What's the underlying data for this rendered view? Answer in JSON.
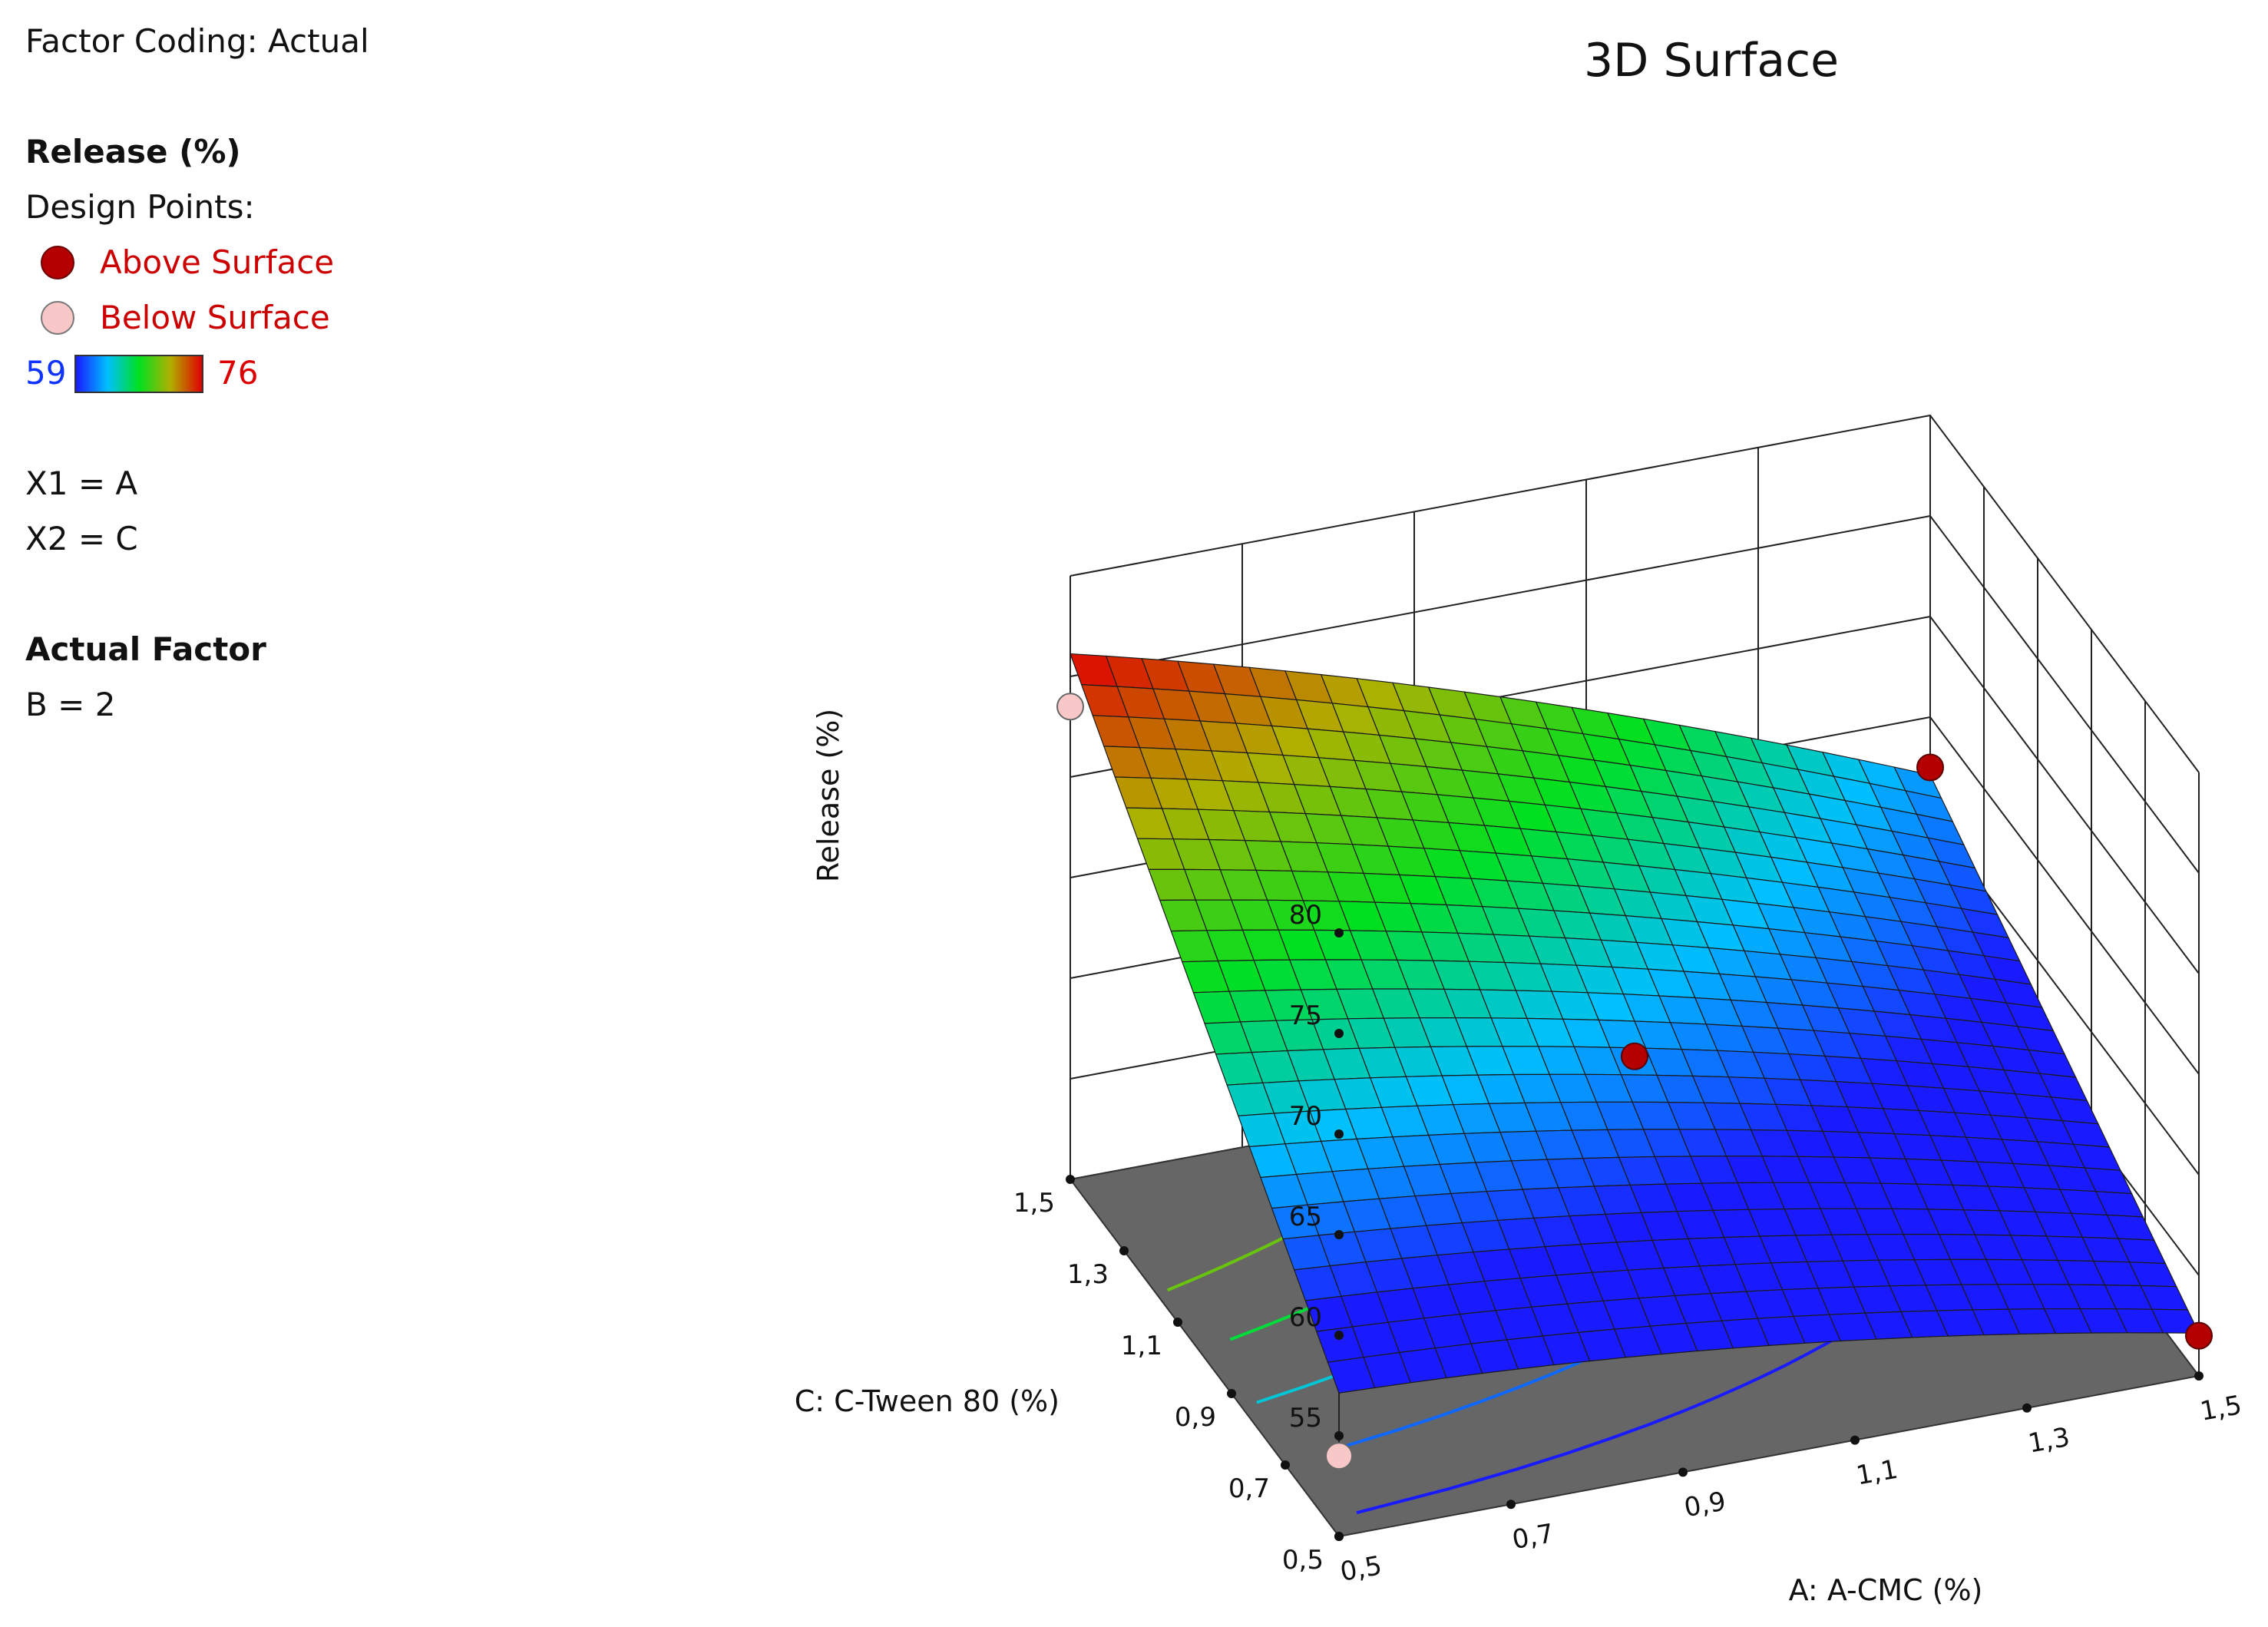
{
  "legend": {
    "factor_coding": "Factor Coding: Actual",
    "response": "Release (%)",
    "design_points_label": "Design Points:",
    "above_label": "Above Surface",
    "below_label": "Below Surface",
    "color_min": "59",
    "color_max": "76",
    "x1": "X1 = A",
    "x2": "X2 = C",
    "actual_factor_heading": "Actual Factor",
    "actual_factor_value": "B = 2"
  },
  "colors": {
    "above_point": "#b40000",
    "below_point": "#f8c7c7",
    "floor": "#666666",
    "scale": [
      "#1a1aff",
      "#00c0ff",
      "#00e020",
      "#b0b000",
      "#e00000"
    ]
  },
  "chart_data": {
    "type": "surface3d",
    "title": "3D Surface",
    "xlabel": "A: A-CMC (%)",
    "ylabel": "C: C-Tween 80 (%)",
    "zlabel": "Release (%)",
    "xlim": [
      0.5,
      1.5
    ],
    "ylim": [
      0.5,
      1.5
    ],
    "zlim": [
      50,
      80
    ],
    "x_ticks": [
      "0,5",
      "0,7",
      "0,9",
      "1,1",
      "1,3",
      "1,5"
    ],
    "y_ticks": [
      "0,5",
      "0,7",
      "0,9",
      "1,1",
      "1,3",
      "1,5"
    ],
    "z_ticks": [
      "55",
      "60",
      "65",
      "70",
      "75",
      "80"
    ],
    "surface_corners": {
      "a_low_c_low": 56,
      "a_high_c_low": 51,
      "a_low_c_high": 75,
      "a_high_c_high": 61
    },
    "contour_levels": [
      70,
      67,
      64,
      61,
      58
    ],
    "design_points": [
      {
        "a": 0.5,
        "c": 1.5,
        "release": 73.5,
        "position": "below"
      },
      {
        "a": 0.5,
        "c": 0.5,
        "release": 54,
        "position": "below"
      },
      {
        "a": 1.0,
        "c": 1.0,
        "release": 61,
        "position": "above"
      },
      {
        "a": 1.5,
        "c": 1.5,
        "release": 62.5,
        "position": "above"
      },
      {
        "a": 1.5,
        "c": 0.5,
        "release": 52,
        "position": "above"
      }
    ]
  }
}
